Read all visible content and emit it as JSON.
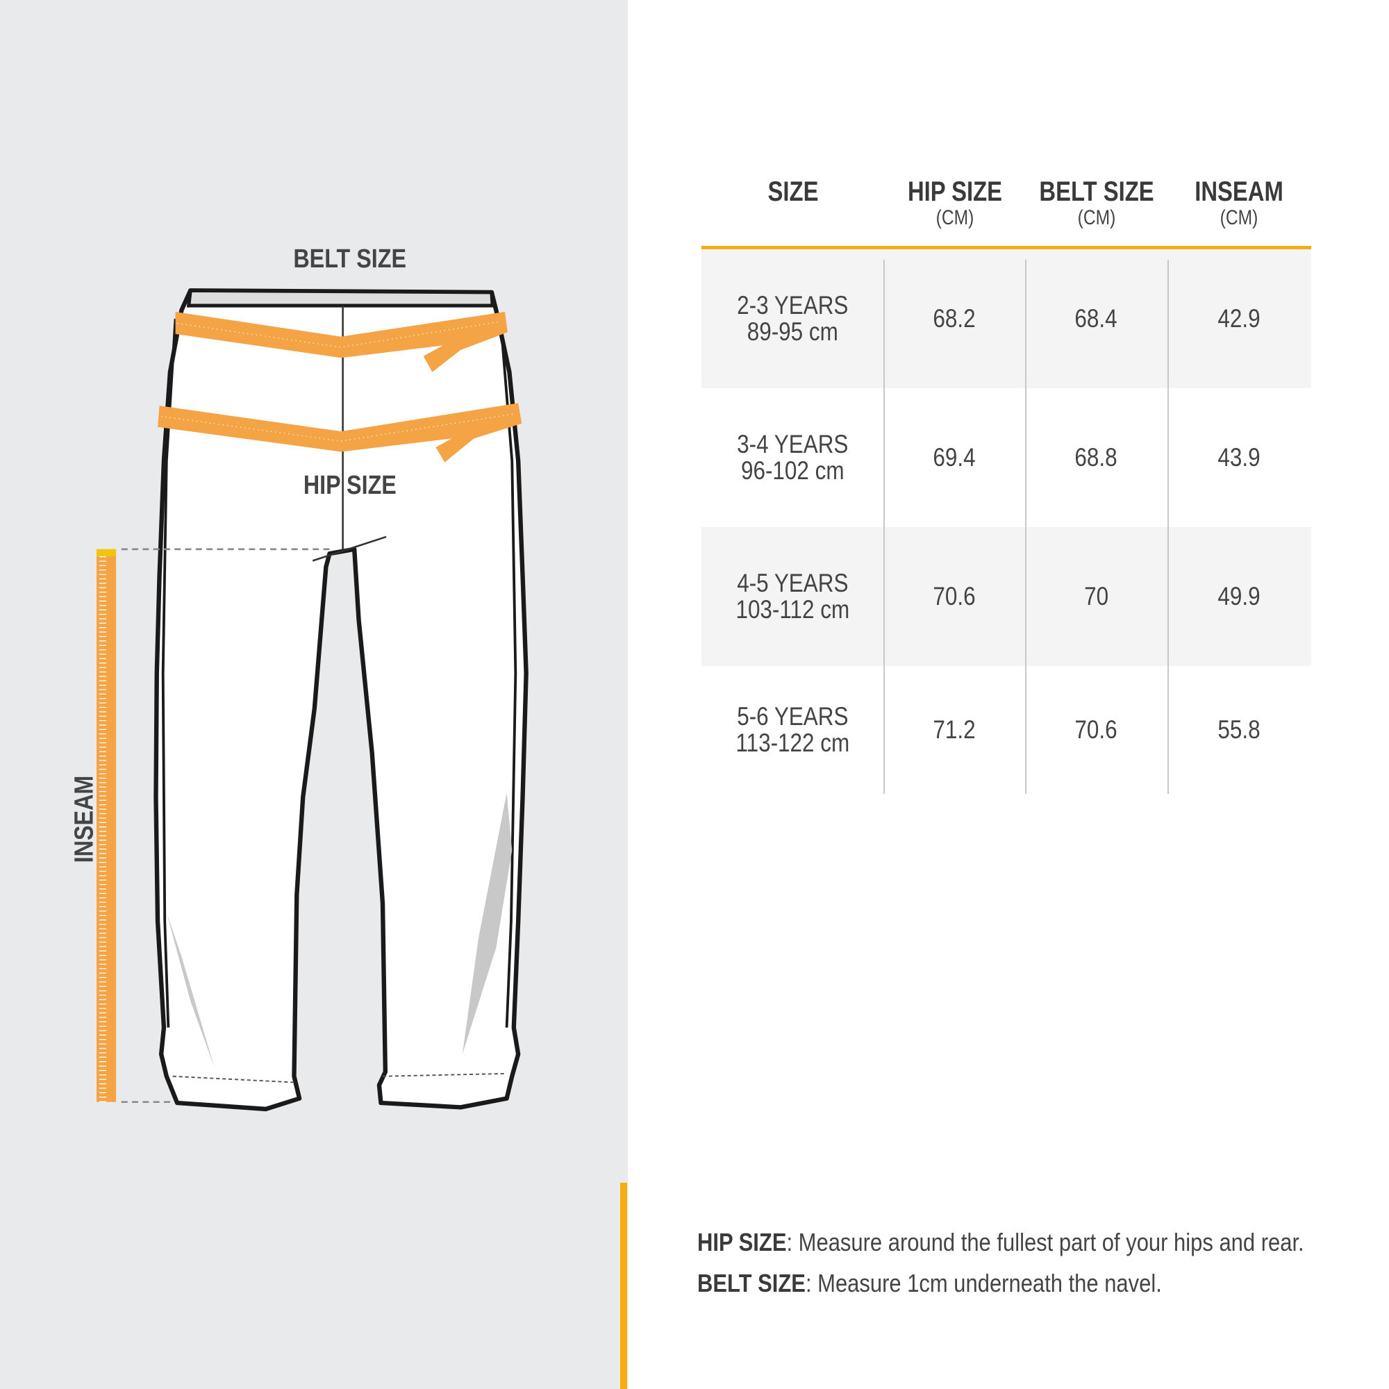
{
  "diagram": {
    "belt_label": "BELT SIZE",
    "hip_label": "HIP SIZE",
    "inseam_label": "INSEAM",
    "colors": {
      "tape": "#f5a445",
      "accent": "#f7ac10",
      "panel": "#e9eaec"
    }
  },
  "table": {
    "headers": [
      {
        "main": "SIZE",
        "unit": ""
      },
      {
        "main": "HIP SIZE",
        "unit": "(CM)"
      },
      {
        "main": "BELT SIZE",
        "unit": "(CM)"
      },
      {
        "main": "INSEAM",
        "unit": "(CM)"
      }
    ],
    "rows": [
      {
        "size": "2-3 YEARS",
        "height": "89-95 cm",
        "hip": "68.2",
        "belt": "68.4",
        "inseam": "42.9"
      },
      {
        "size": "3-4 YEARS",
        "height": "96-102 cm",
        "hip": "69.4",
        "belt": "68.8",
        "inseam": "43.9"
      },
      {
        "size": "4-5 YEARS",
        "height": "103-112 cm",
        "hip": "70.6",
        "belt": "70",
        "inseam": "49.9"
      },
      {
        "size": "5-6 YEARS",
        "height": "113-122 cm",
        "hip": "71.2",
        "belt": "70.6",
        "inseam": "55.8"
      }
    ]
  },
  "notes": [
    {
      "term": "HIP SIZE",
      "text": ": Measure around the fullest part of your hips and rear."
    },
    {
      "term": "BELT SIZE",
      "text": ": Measure 1cm underneath the navel."
    }
  ]
}
